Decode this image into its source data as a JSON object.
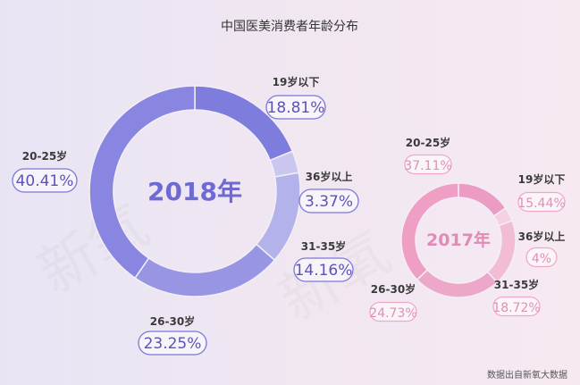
{
  "chart_data": [
    {
      "type": "pie",
      "title": "中国医美消费者年龄分布",
      "center_label": "2018年",
      "categories": [
        "19岁以下",
        "36岁以上",
        "31-35岁",
        "26-30岁",
        "20-25岁"
      ],
      "values": [
        18.81,
        3.37,
        14.16,
        23.25,
        40.41
      ],
      "value_labels": [
        "18.81%",
        "3.37%",
        "14.16%",
        "23.25%",
        "40.41%"
      ],
      "category_labels": [
        "19岁以下",
        "36岁以上",
        "31-35岁",
        "26-30岁",
        "20-25岁"
      ],
      "colors": [
        "#7e7cdc",
        "#c9c7ef",
        "#b3b2ea",
        "#9896e3",
        "#8886e0"
      ]
    },
    {
      "type": "pie",
      "center_label": "2017年",
      "categories": [
        "19岁以下",
        "36岁以上",
        "31-35岁",
        "26-30岁",
        "20-25岁"
      ],
      "values": [
        15.44,
        4,
        18.72,
        24.73,
        37.11
      ],
      "value_labels": [
        "15.44%",
        "4%",
        "18.72%",
        "24.73%",
        "37.11%"
      ],
      "category_labels": [
        "19岁以下",
        "36岁以上",
        "31-35岁",
        "26-30岁",
        "20-25岁"
      ],
      "colors": [
        "#ec9cc3",
        "#f6d1e2",
        "#f2bcd5",
        "#eda7c8",
        "#ef9ec4"
      ]
    }
  ],
  "source": "数据出自新氧大数据"
}
